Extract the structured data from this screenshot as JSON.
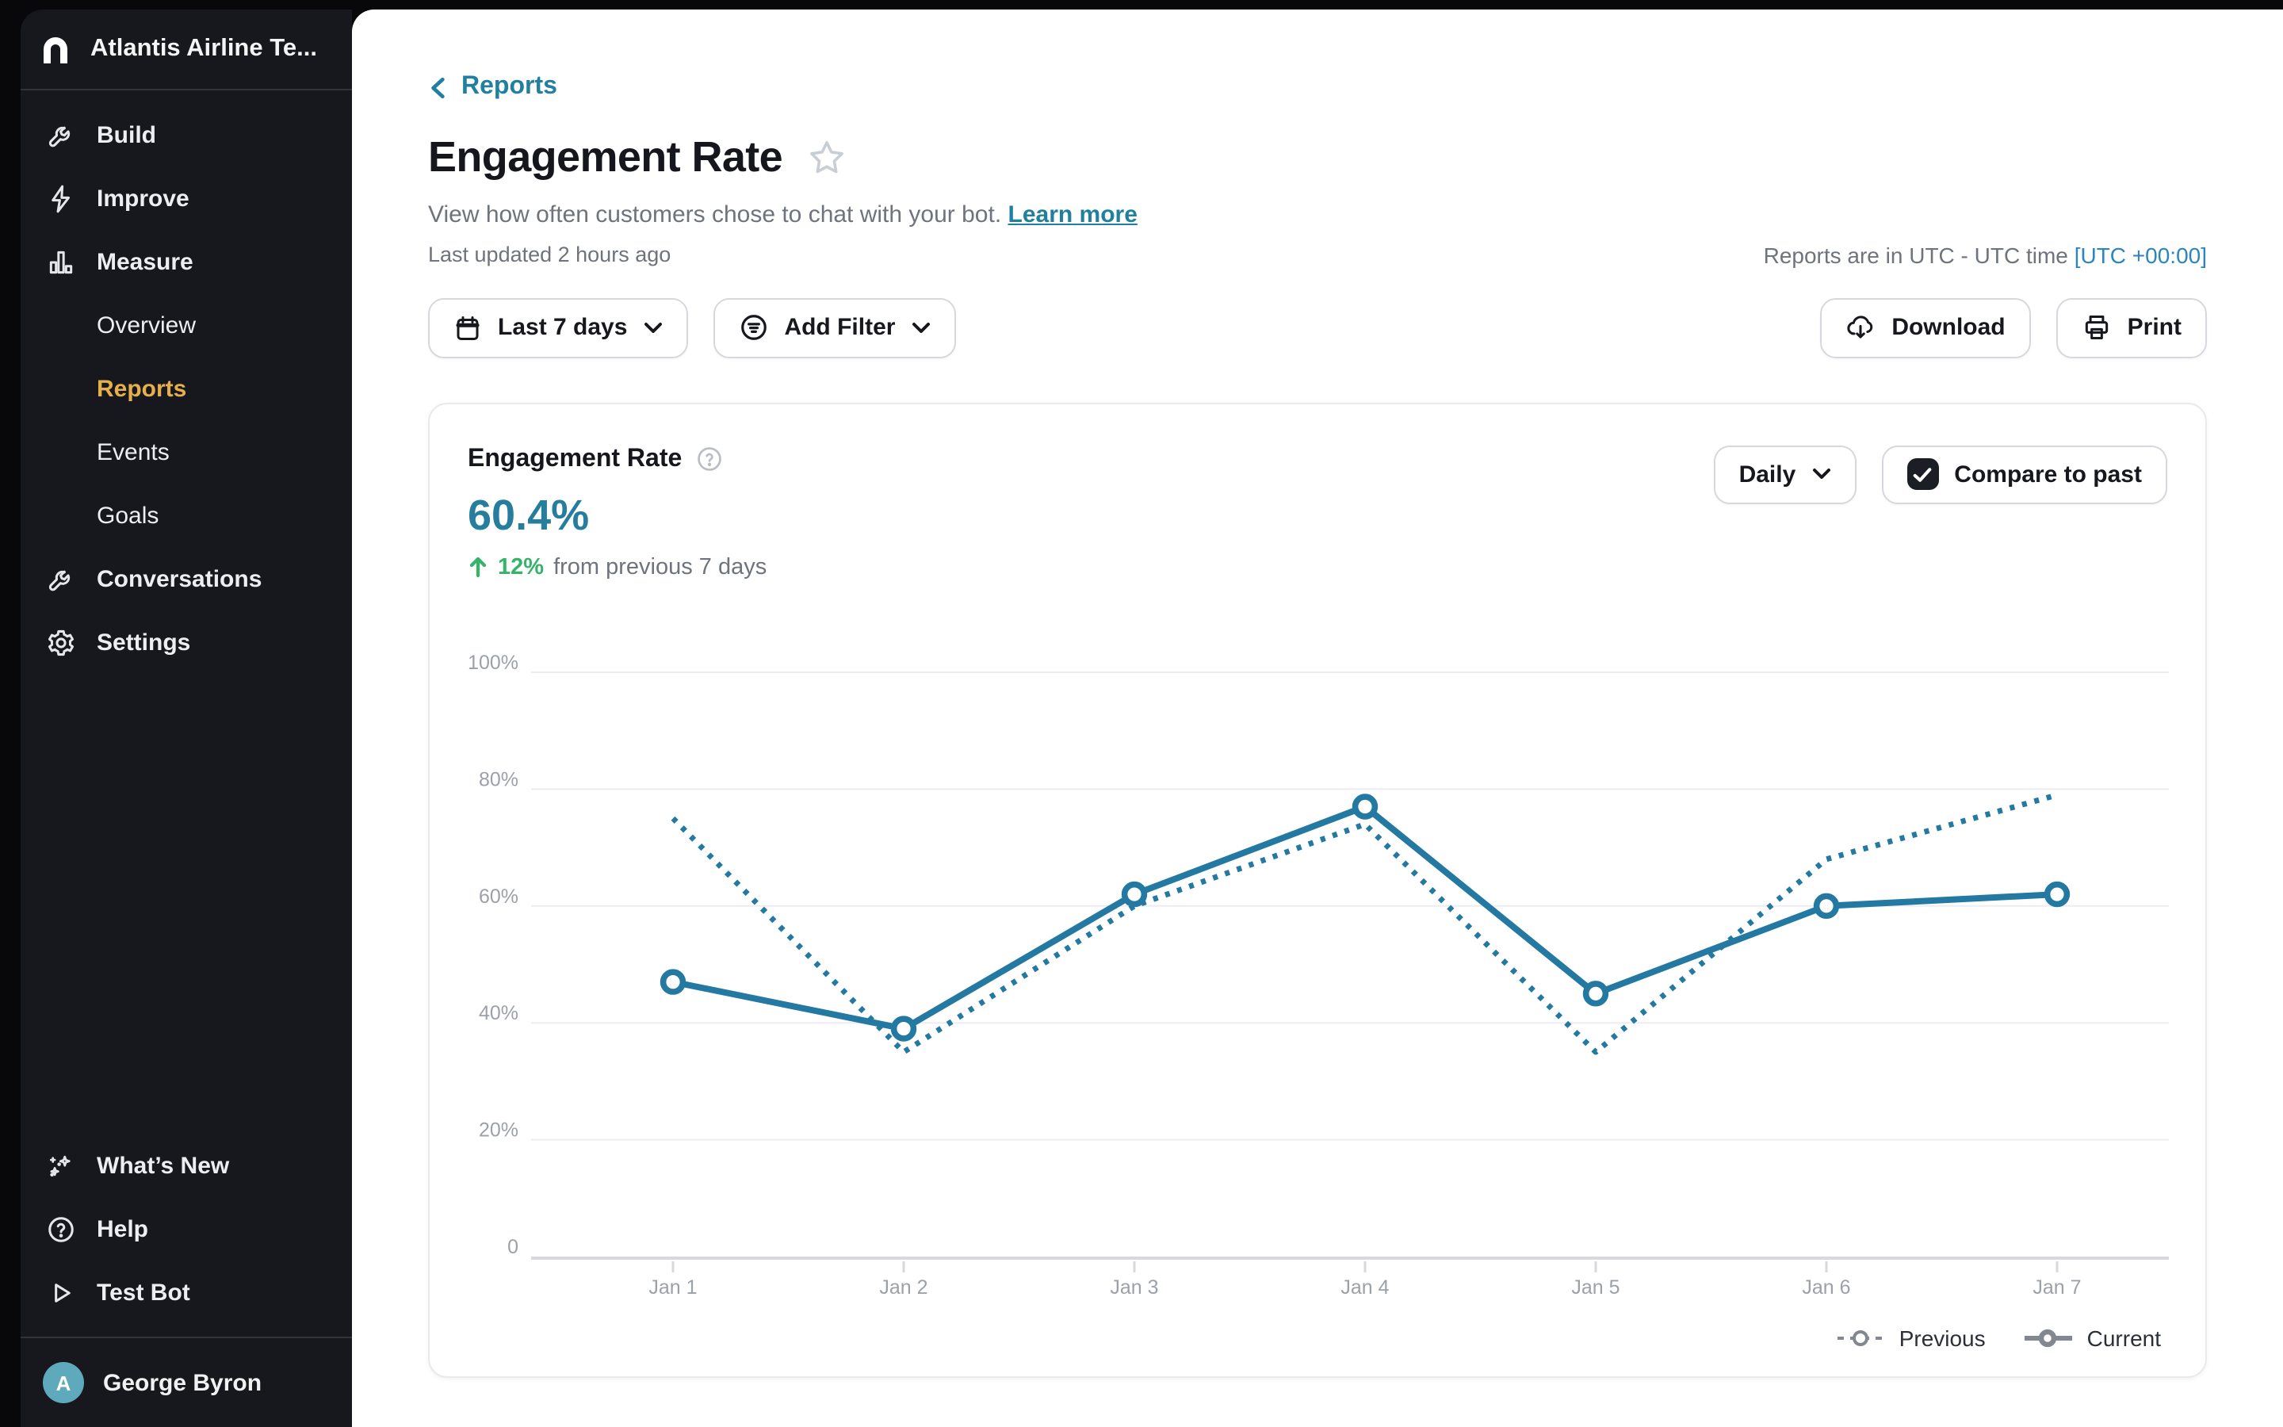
{
  "sidebar": {
    "workspace": "Atlantis Airline Te...",
    "nav": [
      {
        "label": "Build",
        "icon": "wrench-icon"
      },
      {
        "label": "Improve",
        "icon": "bolt-icon"
      },
      {
        "label": "Measure",
        "icon": "bar-chart-icon"
      },
      {
        "label": "Overview",
        "child": true
      },
      {
        "label": "Reports",
        "child": true,
        "active": true
      },
      {
        "label": "Events",
        "child": true
      },
      {
        "label": "Goals",
        "child": true
      },
      {
        "label": "Conversations",
        "icon": "wrench-icon"
      },
      {
        "label": "Settings",
        "icon": "gear-icon"
      }
    ],
    "footer": [
      {
        "label": "What’s New",
        "icon": "sparkles-icon"
      },
      {
        "label": "Help",
        "icon": "help-circle-icon"
      },
      {
        "label": "Test Bot",
        "icon": "play-icon"
      }
    ],
    "user": {
      "name": "George Byron",
      "avatar_initial": "A"
    }
  },
  "header": {
    "back_label": "Reports",
    "title": "Engagement Rate",
    "subtitle": "View how often customers chose to chat with your bot.",
    "learn_more": "Learn more",
    "last_updated": "Last updated 2 hours ago",
    "timezone_note": "Reports are in UTC - UTC time",
    "timezone_link": "[UTC +00:00]"
  },
  "toolbar": {
    "date_range": "Last 7 days",
    "add_filter": "Add Filter",
    "download": "Download",
    "print": "Print"
  },
  "card": {
    "metric_label": "Engagement Rate",
    "metric_value": "60.4%",
    "trend_value": "12%",
    "trend_text": "from previous 7 days",
    "granularity": "Daily",
    "compare_label": "Compare to past",
    "compare_checked": true
  },
  "chart_data": {
    "type": "line",
    "title": "Engagement Rate",
    "categories": [
      "Jan 1",
      "Jan 2",
      "Jan 3",
      "Jan 4",
      "Jan 5",
      "Jan 6",
      "Jan 7"
    ],
    "series": [
      {
        "name": "Previous",
        "style": "dotted",
        "values": [
          75,
          35,
          60,
          74,
          35,
          68,
          79
        ]
      },
      {
        "name": "Current",
        "style": "solid",
        "values": [
          47,
          39,
          62,
          77,
          45,
          60,
          62
        ]
      }
    ],
    "xlabel": "",
    "ylabel": "",
    "ylim": [
      0,
      100
    ],
    "yticks": [
      0,
      20,
      40,
      60,
      80,
      100
    ],
    "ytick_labels": [
      "0",
      "20%",
      "40%",
      "60%",
      "80%",
      "100%"
    ],
    "grid": true,
    "legend_position": "bottom-right",
    "line_color": "#2379a2"
  },
  "colors": {
    "accent_teal": "#21809f",
    "metric_teal": "#267d9d",
    "link_blue": "#2d85c0",
    "trend_green": "#34b369",
    "active_nav_gold": "#e5b04b",
    "sidebar_bg": "#16181d",
    "grid_line": "#ededf1",
    "axis_line": "#d8d9dd",
    "legend_gray": "#83878f"
  },
  "icons": {
    "workspace-logo": "ada-arch",
    "calendar-icon": "calendar",
    "filter-icon": "circle-filter-lines",
    "chevron-down-icon": "chevron-down",
    "download-icon": "cloud-download",
    "print-icon": "printer",
    "star-icon": "star-outline",
    "help-circle-icon": "question-circle",
    "trend-up-icon": "arrow-up"
  }
}
